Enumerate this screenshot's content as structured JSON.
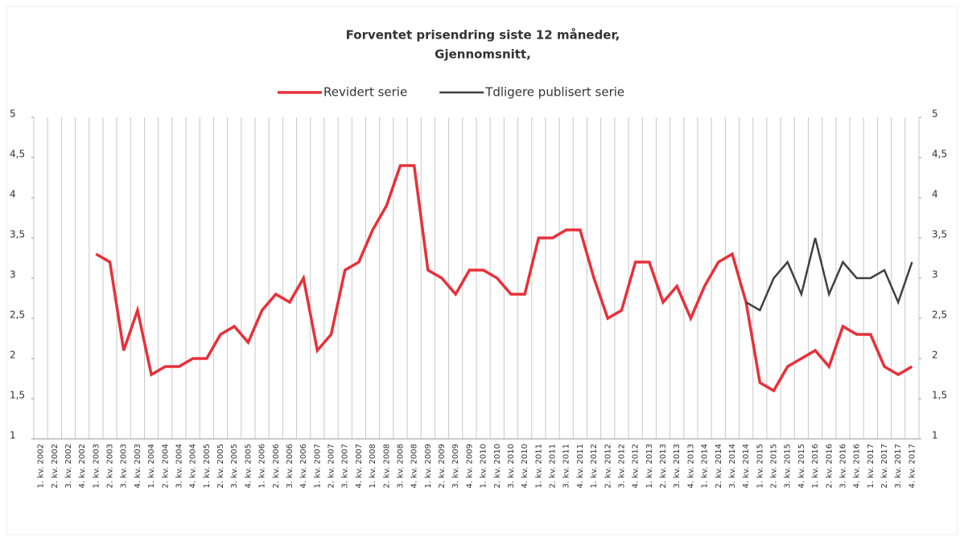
{
  "chart_data": {
    "type": "line",
    "title": "Forventet prisendring siste 12 måneder,",
    "subtitle": "Gjennomsnitt,",
    "categories": [
      "1. kv. 2002",
      "2. kv. 2002",
      "3. kv. 2002",
      "4. kv. 2002",
      "1. kv. 2003",
      "2. kv. 2003",
      "3. kv. 2003",
      "4. kv. 2003",
      "1. kv. 2004",
      "2. kv. 2004",
      "3. kv. 2004",
      "4. kv. 2004",
      "1. kv. 2005",
      "2. kv. 2005",
      "3. kv. 2005",
      "4. kv. 2005",
      "1. kv. 2006",
      "2. kv. 2006",
      "3. kv. 2006",
      "4. kv. 2006",
      "1. kv. 2007",
      "2. kv. 2007",
      "3. kv. 2007",
      "4. kv. 2007",
      "1. kv. 2008",
      "2. kv. 2008",
      "3. kv. 2008",
      "4. kv. 2008",
      "1. kv. 2009",
      "2. kv. 2009",
      "3. kv. 2009",
      "4. kv. 2009",
      "1. kv. 2010",
      "2. kv. 2010",
      "3. kv. 2010",
      "4. kv. 2010",
      "1. kv. 2011",
      "2. kv. 2011",
      "3. kv. 2011",
      "4. kv. 2011",
      "1. kv. 2012",
      "2. kv. 2012",
      "3. kv. 2012",
      "4. kv. 2012",
      "1. kv. 2013",
      "2. kv. 2013",
      "3. kv. 2013",
      "4. kv. 2013",
      "1. kv. 2014",
      "2. kv. 2014",
      "3. kv. 2014",
      "4. kv. 2014",
      "1. kv. 2015",
      "2. kv. 2015",
      "3. kv. 2015",
      "4. kv. 2015",
      "1. kv. 2016",
      "2. kv. 2016",
      "3. kv. 2016",
      "4. kv. 2016",
      "1. kv. 2017",
      "2. kv. 2017",
      "3. kv. 2017",
      "4. kv. 2017"
    ],
    "series": [
      {
        "name": "Revidert serie",
        "color": "#e8303a",
        "width": 3.5,
        "values": [
          null,
          null,
          null,
          null,
          3.3,
          3.2,
          2.1,
          2.6,
          1.8,
          1.9,
          1.9,
          2.0,
          2.0,
          2.3,
          2.4,
          2.2,
          2.6,
          2.8,
          2.7,
          3.0,
          2.1,
          2.3,
          3.1,
          3.2,
          3.6,
          3.9,
          4.4,
          4.4,
          3.1,
          3.0,
          2.8,
          3.1,
          3.1,
          3.0,
          2.8,
          2.8,
          3.5,
          3.5,
          3.6,
          3.6,
          3.0,
          2.5,
          2.6,
          3.2,
          3.2,
          2.7,
          2.9,
          2.5,
          2.9,
          3.2,
          3.3,
          2.7,
          1.7,
          1.6,
          1.9,
          2.0,
          2.1,
          1.9,
          2.4,
          2.3,
          2.3,
          1.9,
          1.8,
          1.9
        ]
      },
      {
        "name": "Tdligere publisert serie",
        "color": "#404040",
        "width": 2.5,
        "values": [
          null,
          null,
          null,
          null,
          null,
          null,
          null,
          null,
          null,
          null,
          null,
          null,
          null,
          null,
          null,
          null,
          null,
          null,
          null,
          null,
          null,
          null,
          null,
          null,
          null,
          null,
          null,
          null,
          null,
          null,
          null,
          null,
          null,
          null,
          null,
          null,
          null,
          null,
          null,
          null,
          null,
          null,
          null,
          null,
          null,
          null,
          null,
          null,
          null,
          null,
          null,
          2.7,
          2.6,
          3.0,
          3.2,
          2.8,
          3.5,
          2.8,
          3.2,
          3.0,
          3.0,
          3.1,
          2.7,
          3.2
        ]
      }
    ],
    "ylim": [
      1,
      5
    ],
    "yticks": [
      1,
      {
        "value": 1.5,
        "label": "1,5"
      },
      2,
      {
        "value": 2.5,
        "label": "2,5"
      },
      3,
      {
        "value": 3.5,
        "label": "3,5"
      },
      4,
      {
        "value": 4.5,
        "label": "4,5"
      },
      5
    ],
    "y2lim": [
      1,
      5
    ],
    "y2ticks": [
      1,
      {
        "value": 1.5,
        "label": "1,5"
      },
      2,
      {
        "value": 2.5,
        "label": "2,5"
      },
      3,
      {
        "value": 3.5,
        "label": "3,5"
      },
      4,
      {
        "value": 4.5,
        "label": "4,5"
      },
      5
    ],
    "grid": true,
    "legend": "top"
  }
}
